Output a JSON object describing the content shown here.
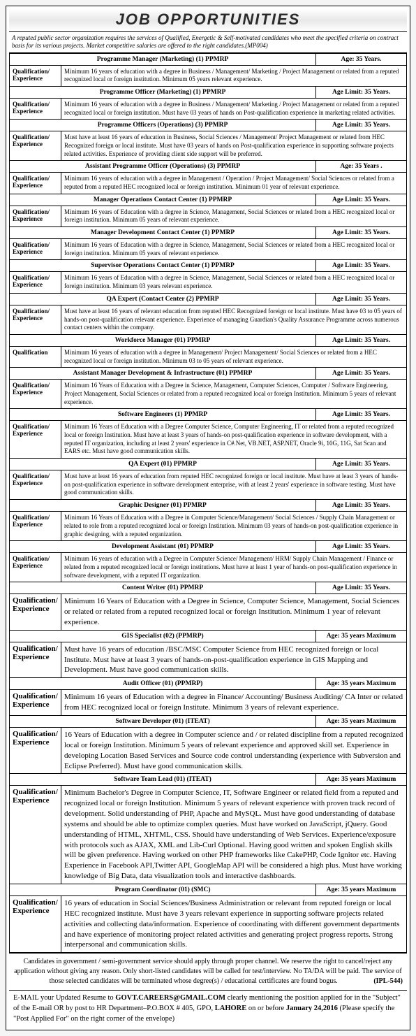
{
  "banner": "JOB OPPORTUNITIES",
  "intro": "A reputed public sector organization requires the services of Qualified, Energetic & Self-motivated candidates who meet the specified criteria on contract basis for its various projects. Market competitive salaries are offered to the right candidates.(MP004)",
  "qualLabel": "Qualification/ Experience",
  "qualLabelShort": "Qualification",
  "jobs": [
    {
      "title": "Programme Manager (Marketing)  (1) PPMRP",
      "age": "Age: 35 Years.",
      "desc": "Minimum 16 years of education with a degree in Business / Management/ Marketing / Project Management or related from a reputed recognized local or foreign institution. Minimum 05 years relevant experience."
    },
    {
      "title": "Programme Officer (Marketing)  (1) PPMRP",
      "age": "Age Limit: 35 Years.",
      "desc": "Minimum 16 years of education with a degree in Business / Management/ Marketing / Project Management or related from a reputed recognized local or foreign institution. Must have 03 years of hands on Post-qualification experience in marketing related activities."
    },
    {
      "title": "Programme Officers (Operations)  (3) PPMRP",
      "age": "Age Limit: 35 Years.",
      "desc": "Must have at least 16 years of education in Business, Social Sciences / Management/ Project Management or related from HEC Recognized foreign or local institute. Must have 03 years of hands on Post-qualification experience in supporting software projects related activities. Experience of providing client side support will be preferred."
    },
    {
      "title": "Assistant Programme Officer (Operations)  (3) PPMRP",
      "age": "Age: 35 Years .",
      "desc": "Minimum 16 years of education with a degree in Management / Operation / Project Management/  Social Sciences or related from a reputed from a reputed HEC recognized local or foreign institution. Minimum 01 year of relevant experience."
    },
    {
      "title": "Manager Operations Contact Center (1) PPMRP",
      "age": "Age Limit: 35 Years.",
      "desc": "Minimum 16 years of Education with a degree in Science, Management, Social Sciences or related from a HEC recognized local or foreign institution. Minimum 05 years of relevant experience."
    },
    {
      "title": "Manager Development Contact Center (1) PPMRP",
      "age": "Age Limit: 35 Years.",
      "desc": "Minimum 16 years of Education with a degree in Science, Management, Social Sciences or related from a HEC recognized local or foreign institution. Minimum 05 years of relevant experience."
    },
    {
      "title": "Supervisor Operations  Contact Center (1) PPMRP",
      "age": "Age Limit: 35 Years.",
      "desc": "Minimum 16 years of Education with a degree in Science, Management, Social Sciences or related from a HEC recognized local or foreign institution. Minimum 03 years relevant experience."
    },
    {
      "title": "QA Expert (Contact Center (2) PPMRP",
      "age": "Age Limit: 35 Years.",
      "desc": "Must have at least 16 years of relevant education from reputed HEC Recognized foreign or local institute. Must have 03 to 05 years of hands-on post-qualification relevant experience. Experience of managing  Guardian's Quality Assurance Programme across numerous contact centers within the company."
    },
    {
      "title": "Workforce Manager (01) PPMRP",
      "age": "Age Limit: 35 Years.",
      "desc": "Minimum 16 years of education with a degree in  Management/ Project Management/ Social Sciences or related from a HEC recognized local or foreign institution. Minimum 03 to 05 years of relevant experience.",
      "labelShort": true
    },
    {
      "title": "Assistant Manager Development & Infrastructure (01) PPMRP",
      "age": "Age Limit: 35 Years.",
      "desc": "Minimum 16 Years of Education with a Degree in Science, Management,  Computer Sciences, Computer / Software Engineering, Project Management, Social Sciences or related from a reputed recognized local or foreign Institution. Minimum 5 years of relevant experience."
    },
    {
      "title": "Software Engineers (1) PPMRP",
      "age": "Age Limit: 35 Years.",
      "desc": "Minimum 16 Years of Education with a Degree Computer Science, Computer Engineering, IT or related from a reputed recognized local or foreign Institution. Must have at least 3 years of hands-on post-qualification experience in software development, with a reputed IT organization, including at least 2 years' experience in C#.Net, VB.NET, ASP.NET, Oracle 9i, 10G, 11G, Sat Scan and EARS etc. Must have good communication skills."
    },
    {
      "title": "QA Expert (01) PPMRP",
      "age": "Age Limit: 35 Years.",
      "desc": "Must have at least 16 years of education from reputed HEC recognized foreign or local institute. Must have at least 3 years of hands-on post-qualification experience in software development enterprise, with at least 2 years' experience in software testing. Must have good communication skills."
    },
    {
      "title": "Graphic Designer (01) PPMRP",
      "age": "Age Limit: 35 Years.",
      "desc": "Minimum 16 Years of Education with a Degree in Computer Science/Management/ Social Sciences / Supply Chain Management or related to role from a reputed recognized local or foreign Institution. Minimum 03 years of hands-on post-qualification experience in graphic designing, with a reputed organization."
    },
    {
      "title": "Development Assistant  (01) PPMRP",
      "age": "Age Limit: 35 Years.",
      "desc": "Minimum 16 years of education with a Degree in Computer Science/ Management/ HRM/ Supply Chain Management / Finance or related from a reputed recognized local or foreign institutions. Must have at least 1 year of hands-on post-qualification experience in software development, with a reputed IT organization."
    },
    {
      "title": "Content Writer  (01) PPMRP",
      "age": "Age Limit: 35 Years.",
      "desc": "Minimum 16 Years of Education with a Degree in Science, Computer Science, Management, Social Sciences or related or related from a reputed recognized local or foreign Institution. Minimum 1 year of relevant experience.",
      "big": true
    },
    {
      "title": "GIS Specialist (02) (PPMRP)",
      "age": "Age: 35 years Maximum",
      "desc": "Must have 16 years of education /BSC/MSC Computer Science from HEC recognized foreign or local Institute. Must have at least 3 years of hands-on-post-qualification experience in GIS Mapping and Development. Must have good communication skills.",
      "big": true
    },
    {
      "title": "Audit Officer (01) (PPMRP)",
      "age": "Age: 35 years Maximum",
      "desc": "Minimum 16 years of Education with a degree in Finance/ Accounting/ Business Auditing/ CA Inter or related from HEC recognized local or foreign Institute. Minimum 3 years of relevant experience.",
      "big": true
    },
    {
      "title": "Software Developer (01) (ITEAT)",
      "age": "Age: 35 years Maximum",
      "desc": "16 Years of Education with a degree in Computer science and / or related discipline from a reputed recognized local or foreign Institution. Minimum 5 years of relevant experience and approved skill set. Experience in developing Location Based Services and Source code control understanding (experience with Subversion and Eclipse Preferred). Must have good communication skills.",
      "big": true
    },
    {
      "title": "Software Team Lead  (01) (ITEAT)",
      "age": "Age: 35 years Maximum",
      "desc": "Minimum Bachelor's Degree in Computer Science, IT, Software Engineer or related field from a reputed and recognized local or foreign Institution. Minimum 5 years of relevant experience with proven track record of development. Solid understanding of PHP, Apache and MySQL. Must have good understanding of database systems and should be able to optimize complex queries. Must have worked on JavaScript, jQuery. Good understanding of HTML, XHTML, CSS. Should have understanding of Web Services. Experience/exposure with protocols such as AJAX, XML and Lib-Curl Optional. Having good written and spoken English skills will be given preference. Having worked on other PHP frameworks like CakePHP, Code Ignitor etc. Having Experience in Facebook API,Twitter API, GoogleMap API will be considered a high plus. Must have working knowledge of Big Data, data visualization tools and interactive dashboards.",
      "big": true
    },
    {
      "title": "Program Coordinator  (01) (SMC)",
      "age": "Age: 35 years Maximum",
      "desc": "16 years of education in Social Sciences/Business Administration or relevant from reputed foreign or local HEC recognized institute. Must have 3 years relevant experience in supporting software projects related activities and collecting data/information. Experience of coordinating with different government departments and have experience of monitoring project related activities and generating project progress reports. Strong interpersonal and communication skills.",
      "big": true
    }
  ],
  "notes": "Candidates in government / semi-government service should apply through proper channel. We reserve the right to cancel/reject any application without giving any reason. Only short-listed candidates will be called for test/interview. No TA/DA will be paid. The service of those selected candidates will be terminated whose degree(s) / educational certificates are found bogus.",
  "ipl": "(IPL-544)",
  "footer_parts": {
    "p1": "E-MAIL your Updated Resume to ",
    "email": "GOVT.CAREERS@GMAIL.COM",
    "p2": " clearly mentioning the position applied for in the \"Subject\" of the E-mail OR by post to HR Department–P.O.BOX # 405, GPO, ",
    "city": "LAHORE",
    "p3": " on or before ",
    "date": "January 24,2016",
    "p4": " (Please specify the \"Post Applied For\" on the right corner of the envelope)"
  }
}
